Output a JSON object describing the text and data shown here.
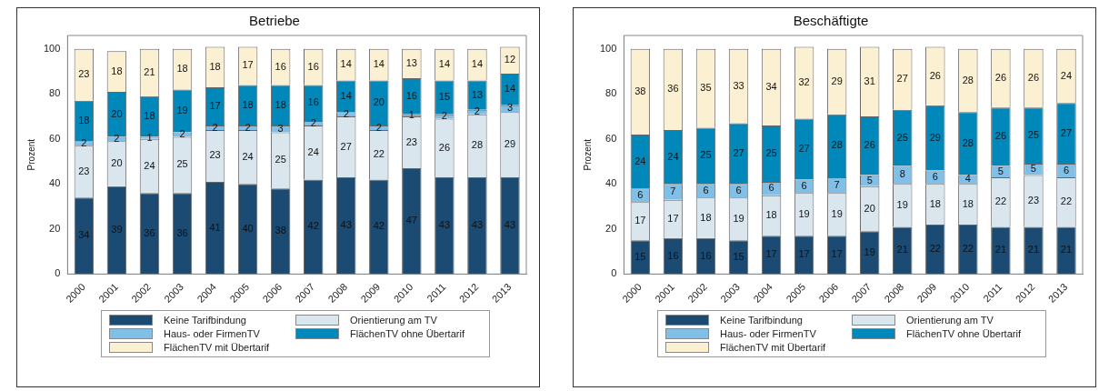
{
  "chart_data": [
    {
      "type": "bar",
      "title": "Betriebe",
      "ylabel": "Prozent",
      "stacked": true,
      "data_labels": true,
      "legend": "bottom",
      "grid": false,
      "categories": [
        "2000",
        "2001",
        "2002",
        "2003",
        "2004",
        "2005",
        "2006",
        "2007",
        "2008",
        "2009",
        "2010",
        "2011",
        "2012",
        "2013"
      ],
      "ylim": [
        0,
        106
      ],
      "yticks": [
        0,
        20,
        40,
        60,
        80,
        100
      ],
      "series": [
        {
          "name": "Keine Tarifbindung",
          "color": "#1b4a72",
          "values": [
            34,
            39,
            36,
            36,
            41,
            40,
            38,
            42,
            43,
            42,
            47,
            43,
            43,
            43
          ]
        },
        {
          "name": "Orientierung am TV",
          "color": "#d9e6ee",
          "values": [
            23,
            20,
            24,
            25,
            23,
            24,
            25,
            24,
            27,
            22,
            23,
            26,
            28,
            29
          ]
        },
        {
          "name": "Haus- oder FirmenTV",
          "color": "#80bfe8",
          "values": [
            2,
            2,
            1,
            2,
            2,
            2,
            3,
            2,
            2,
            2,
            1,
            2,
            2,
            3
          ]
        },
        {
          "name": "FlächenTV ohne Übertarif",
          "color": "#0088bb",
          "values": [
            18,
            20,
            18,
            19,
            17,
            18,
            18,
            16,
            14,
            20,
            16,
            15,
            13,
            14
          ]
        },
        {
          "name": "FlächenTV mit Übertarif",
          "color": "#fbf0d2",
          "values": [
            23,
            18,
            21,
            18,
            18,
            17,
            16,
            16,
            14,
            14,
            13,
            14,
            14,
            12
          ]
        }
      ]
    },
    {
      "type": "bar",
      "title": "Beschäftigte",
      "ylabel": "Prozent",
      "stacked": true,
      "data_labels": true,
      "legend": "bottom",
      "grid": false,
      "categories": [
        "2000",
        "2001",
        "2002",
        "2003",
        "2004",
        "2005",
        "2006",
        "2007",
        "2008",
        "2009",
        "2010",
        "2011",
        "2012",
        "2013"
      ],
      "ylim": [
        0,
        106
      ],
      "yticks": [
        0,
        20,
        40,
        60,
        80,
        100
      ],
      "series": [
        {
          "name": "Keine Tarifbindung",
          "color": "#1b4a72",
          "values": [
            15,
            16,
            16,
            15,
            17,
            17,
            17,
            19,
            21,
            22,
            22,
            21,
            21,
            21
          ]
        },
        {
          "name": "Orientierung am TV",
          "color": "#d9e6ee",
          "values": [
            17,
            17,
            18,
            19,
            18,
            19,
            19,
            20,
            19,
            18,
            18,
            22,
            23,
            22
          ]
        },
        {
          "name": "Haus- oder FirmenTV",
          "color": "#80bfe8",
          "values": [
            6,
            7,
            6,
            6,
            6,
            6,
            7,
            5,
            8,
            6,
            4,
            5,
            5,
            6
          ]
        },
        {
          "name": "FlächenTV ohne Übertarif",
          "color": "#0088bb",
          "values": [
            24,
            24,
            25,
            27,
            25,
            27,
            28,
            26,
            25,
            29,
            28,
            26,
            25,
            27
          ]
        },
        {
          "name": "FlächenTV mit Übertarif",
          "color": "#fbf0d2",
          "values": [
            38,
            36,
            35,
            33,
            34,
            32,
            29,
            31,
            27,
            26,
            28,
            26,
            26,
            24
          ]
        }
      ]
    }
  ]
}
